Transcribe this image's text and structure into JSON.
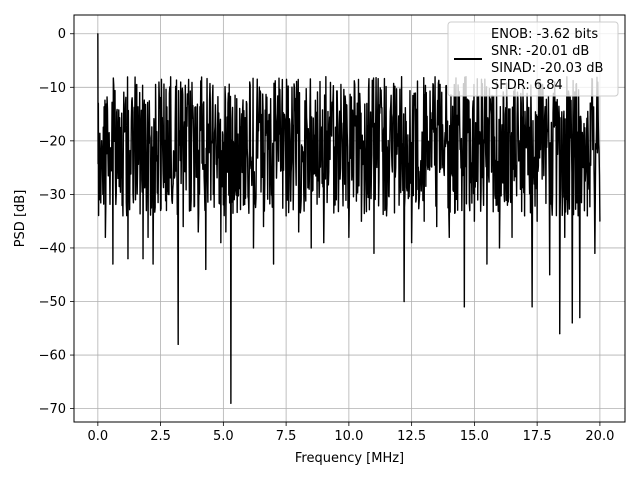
{
  "chart_data": {
    "type": "line",
    "xlabel": "Frequency [MHz]",
    "ylabel": "PSD [dB]",
    "xlim": [
      -0.95,
      21.0
    ],
    "ylim": [
      -72.5,
      3.5
    ],
    "x_ticks": [
      0.0,
      2.5,
      5.0,
      7.5,
      10.0,
      12.5,
      15.0,
      17.5,
      20.0
    ],
    "x_tick_labels": [
      "0.0",
      "2.5",
      "5.0",
      "7.5",
      "10.0",
      "12.5",
      "15.0",
      "17.5",
      "20.0"
    ],
    "y_ticks": [
      0,
      -10,
      -20,
      -30,
      -40,
      -50,
      -60,
      -70
    ],
    "y_tick_labels": [
      "0",
      "−10",
      "−20",
      "−30",
      "−40",
      "−50",
      "−60",
      "−70"
    ],
    "grid": true,
    "legend_position": "top-right",
    "legend_lines": [
      "ENOB: -3.62 bits",
      "SNR: -20.01 dB",
      "SINAD: -20.03 dB",
      "SFDR: 6.84"
    ],
    "series_color": "#000000",
    "series": [
      {
        "x": [
          0.0,
          0.02,
          0.04,
          0.06,
          0.1,
          0.15,
          0.2,
          0.3,
          0.4,
          0.6,
          0.8,
          1.0,
          1.2,
          1.5,
          1.8,
          2.0,
          2.2,
          2.5,
          2.8,
          3.0,
          3.2,
          3.4,
          3.7,
          4.0,
          4.3,
          4.6,
          4.9,
          5.1,
          5.3,
          5.5,
          5.8,
          6.2,
          6.6,
          7.0,
          7.5,
          8.0,
          8.5,
          9.0,
          9.5,
          10.0,
          10.5,
          11.0,
          11.5,
          12.0,
          12.2,
          12.5,
          13.0,
          13.5,
          14.0,
          14.5,
          14.6,
          15.0,
          15.5,
          16.0,
          16.5,
          17.0,
          17.3,
          17.5,
          18.0,
          18.4,
          18.6,
          18.9,
          19.2,
          19.5,
          19.8,
          20.0
        ],
        "y": [
          0,
          -13,
          -22,
          -31,
          -25,
          -20,
          -30,
          -38,
          -22,
          -43,
          -27,
          -34,
          -42,
          -31,
          -42,
          -38,
          -43,
          -33,
          -30,
          -28,
          -58,
          -36,
          -33,
          -37,
          -44,
          -30,
          -39,
          -37,
          -69,
          -29,
          -32,
          -40,
          -36,
          -43,
          -34,
          -37,
          -40,
          -39,
          -31,
          -38,
          -35,
          -41,
          -34,
          -32,
          -50,
          -39,
          -35,
          -36,
          -38,
          -33,
          -51,
          -35,
          -43,
          -40,
          -38,
          -34,
          -51,
          -35,
          -45,
          -56,
          -38,
          -54,
          -53,
          -34,
          -41,
          -35
        ]
      }
    ]
  }
}
